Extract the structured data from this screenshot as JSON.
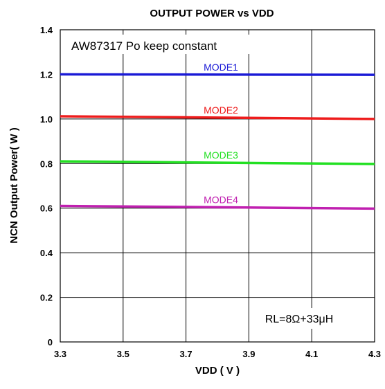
{
  "chart_data": {
    "type": "line",
    "title": "OUTPUT POWER vs VDD",
    "xlabel": "VDD ( V )",
    "ylabel": "NCN Output Power( W )",
    "x_ticks": [
      "3.3",
      "3.5",
      "3.7",
      "3.9",
      "4.1",
      "4.3"
    ],
    "y_ticks": [
      "0",
      "0.2",
      "0.4",
      "0.6",
      "0.8",
      "1.0",
      "1.2",
      "1.4"
    ],
    "xlim": [
      3.3,
      4.3
    ],
    "ylim": [
      0,
      1.4
    ],
    "grid": true,
    "series": [
      {
        "name": "MODE1",
        "color": "#1a1ad6",
        "x": [
          3.3,
          4.3
        ],
        "y": [
          1.2,
          1.198
        ]
      },
      {
        "name": "MODE2",
        "color": "#ee1c1c",
        "x": [
          3.3,
          4.3
        ],
        "y": [
          1.012,
          1.0
        ]
      },
      {
        "name": "MODE3",
        "color": "#22e022",
        "x": [
          3.3,
          4.3
        ],
        "y": [
          0.81,
          0.798
        ]
      },
      {
        "name": "MODE4",
        "color": "#c020b0",
        "x": [
          3.3,
          4.3
        ],
        "y": [
          0.61,
          0.598
        ]
      }
    ],
    "annotations": {
      "top_left": "AW87317 Po keep constant",
      "bottom_right": "RL=8Ω+33μH"
    }
  }
}
